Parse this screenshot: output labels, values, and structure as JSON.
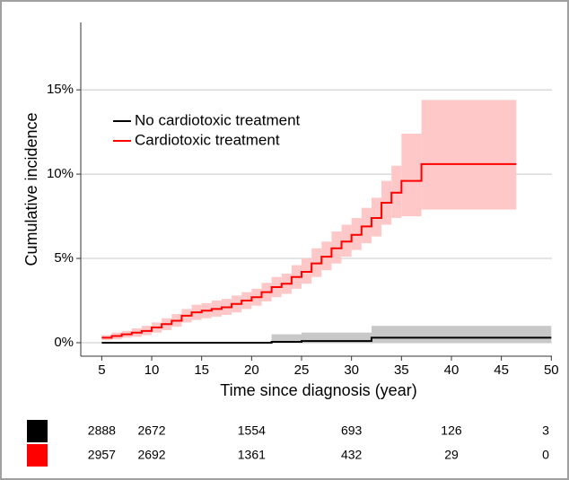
{
  "chart_data": {
    "type": "step",
    "xlabel": "Time since diagnosis (year)",
    "ylabel": "Cumulative incidence",
    "xlim": [
      2.9,
      51.5
    ],
    "ylim": [
      -0.8,
      19
    ],
    "xticks": [
      5,
      10,
      15,
      20,
      25,
      30,
      35,
      40,
      45,
      50
    ],
    "yticks": [
      {
        "value": 0,
        "label": "0%"
      },
      {
        "value": 5,
        "label": "5%"
      },
      {
        "value": 10,
        "label": "10%"
      },
      {
        "value": 15,
        "label": "15%"
      }
    ],
    "grid": true,
    "legend": "upper left",
    "series": [
      {
        "name": "No cardiotoxic treatment",
        "color": "#000000",
        "band_color": "#c8c8c8",
        "x": [
          5,
          22,
          25,
          32,
          50
        ],
        "values": [
          0,
          0.05,
          0.1,
          0.3,
          0.3
        ],
        "lower": [
          0,
          0,
          0,
          0,
          0
        ],
        "upper": [
          0,
          0.5,
          0.6,
          1.0,
          1.0
        ]
      },
      {
        "name": "Cardiotoxic treatment",
        "color": "#ff0000",
        "band_color": "#ffc8c8",
        "x": [
          5,
          6,
          7,
          8,
          9,
          10,
          11,
          12,
          13,
          14,
          15,
          16,
          17,
          18,
          19,
          20,
          21,
          22,
          23,
          24,
          25,
          26,
          27,
          28,
          29,
          30,
          31,
          32,
          33,
          34,
          35,
          37,
          46.5
        ],
        "values": [
          0.3,
          0.4,
          0.5,
          0.6,
          0.7,
          0.9,
          1.1,
          1.3,
          1.6,
          1.8,
          1.9,
          2.0,
          2.1,
          2.3,
          2.5,
          2.7,
          3.0,
          3.3,
          3.5,
          3.9,
          4.2,
          4.7,
          5.1,
          5.6,
          6.0,
          6.4,
          6.9,
          7.4,
          8.3,
          8.9,
          9.6,
          10.6,
          10.6
        ],
        "lower": [
          0.15,
          0.2,
          0.3,
          0.35,
          0.45,
          0.6,
          0.75,
          0.95,
          1.2,
          1.35,
          1.45,
          1.55,
          1.65,
          1.8,
          2.0,
          2.2,
          2.45,
          2.7,
          2.9,
          3.2,
          3.5,
          3.9,
          4.3,
          4.7,
          5.1,
          5.5,
          5.9,
          6.3,
          7.0,
          7.4,
          7.5,
          7.9,
          7.9
        ],
        "upper": [
          0.45,
          0.6,
          0.7,
          0.85,
          1.0,
          1.2,
          1.45,
          1.7,
          2.0,
          2.25,
          2.35,
          2.5,
          2.6,
          2.8,
          3.0,
          3.2,
          3.55,
          3.9,
          4.1,
          4.6,
          5.0,
          5.6,
          6.0,
          6.6,
          7.0,
          7.4,
          8.0,
          8.6,
          9.6,
          10.5,
          12.4,
          14.4,
          14.4
        ]
      }
    ],
    "risk_table": {
      "times": [
        5,
        10,
        20,
        30,
        40,
        50
      ],
      "rows": [
        {
          "color": "#000000",
          "values": [
            2888,
            2672,
            1554,
            693,
            126,
            3
          ]
        },
        {
          "color": "#ff0000",
          "values": [
            2957,
            2692,
            1361,
            432,
            29,
            0
          ]
        }
      ]
    }
  }
}
